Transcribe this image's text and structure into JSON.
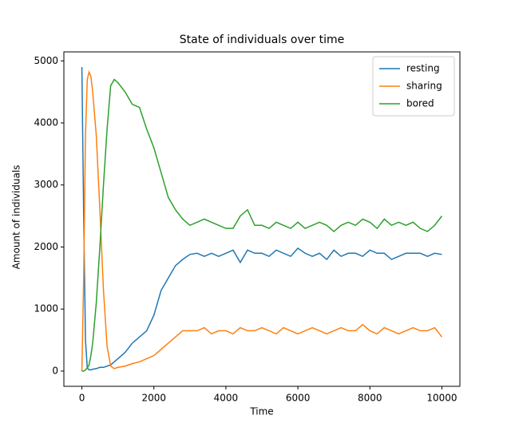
{
  "chart_data": {
    "type": "line",
    "title": "State of individuals over time",
    "x_label": "Time",
    "y_label": "Amount of individuals",
    "x": [
      0,
      50,
      100,
      150,
      200,
      250,
      300,
      400,
      500,
      600,
      700,
      800,
      900,
      1000,
      1200,
      1400,
      1600,
      1800,
      2000,
      2200,
      2400,
      2600,
      2800,
      3000,
      3200,
      3400,
      3600,
      3800,
      4000,
      4200,
      4400,
      4600,
      4800,
      5000,
      5200,
      5400,
      5600,
      5800,
      6000,
      6200,
      6400,
      6600,
      6800,
      7000,
      7200,
      7400,
      7600,
      7800,
      8000,
      8200,
      8400,
      8600,
      8800,
      9000,
      9200,
      9400,
      9600,
      9800,
      10000
    ],
    "series": [
      {
        "name": "resting",
        "color": "#1f77b4",
        "values": [
          4900,
          2500,
          500,
          50,
          20,
          20,
          30,
          40,
          60,
          60,
          80,
          100,
          150,
          200,
          300,
          450,
          550,
          650,
          900,
          1300,
          1500,
          1700,
          1800,
          1880,
          1900,
          1850,
          1900,
          1850,
          1900,
          1950,
          1750,
          1950,
          1900,
          1900,
          1850,
          1950,
          1900,
          1850,
          1980,
          1900,
          1850,
          1900,
          1800,
          1950,
          1850,
          1900,
          1900,
          1850,
          1950,
          1900,
          1900,
          1800,
          1850,
          1900,
          1900,
          1900,
          1850,
          1900,
          1880
        ]
      },
      {
        "name": "sharing",
        "color": "#ff7f0e",
        "values": [
          0,
          1500,
          3800,
          4700,
          4820,
          4750,
          4500,
          3800,
          2600,
          1300,
          400,
          80,
          40,
          60,
          80,
          120,
          150,
          200,
          250,
          350,
          450,
          550,
          650,
          650,
          650,
          700,
          600,
          650,
          650,
          600,
          700,
          650,
          650,
          700,
          650,
          600,
          700,
          650,
          600,
          650,
          700,
          650,
          600,
          650,
          700,
          650,
          650,
          750,
          650,
          600,
          700,
          650,
          600,
          650,
          700,
          650,
          650,
          700,
          550
        ]
      },
      {
        "name": "bored",
        "color": "#2ca02c",
        "values": [
          0,
          0,
          20,
          50,
          100,
          250,
          450,
          1100,
          2000,
          3000,
          3900,
          4600,
          4700,
          4650,
          4500,
          4300,
          4250,
          3900,
          3600,
          3200,
          2800,
          2600,
          2450,
          2350,
          2400,
          2450,
          2400,
          2350,
          2300,
          2300,
          2500,
          2600,
          2350,
          2350,
          2300,
          2400,
          2350,
          2300,
          2400,
          2300,
          2350,
          2400,
          2350,
          2250,
          2350,
          2400,
          2350,
          2450,
          2400,
          2300,
          2450,
          2350,
          2400,
          2350,
          2400,
          2300,
          2250,
          2350,
          2500
        ]
      }
    ],
    "xlim": [
      -500,
      10500
    ],
    "ylim": [
      -245,
      5145
    ],
    "xticks": [
      0,
      2000,
      4000,
      6000,
      8000,
      10000
    ],
    "yticks": [
      0,
      1000,
      2000,
      3000,
      4000,
      5000
    ],
    "legend": "upper right"
  }
}
